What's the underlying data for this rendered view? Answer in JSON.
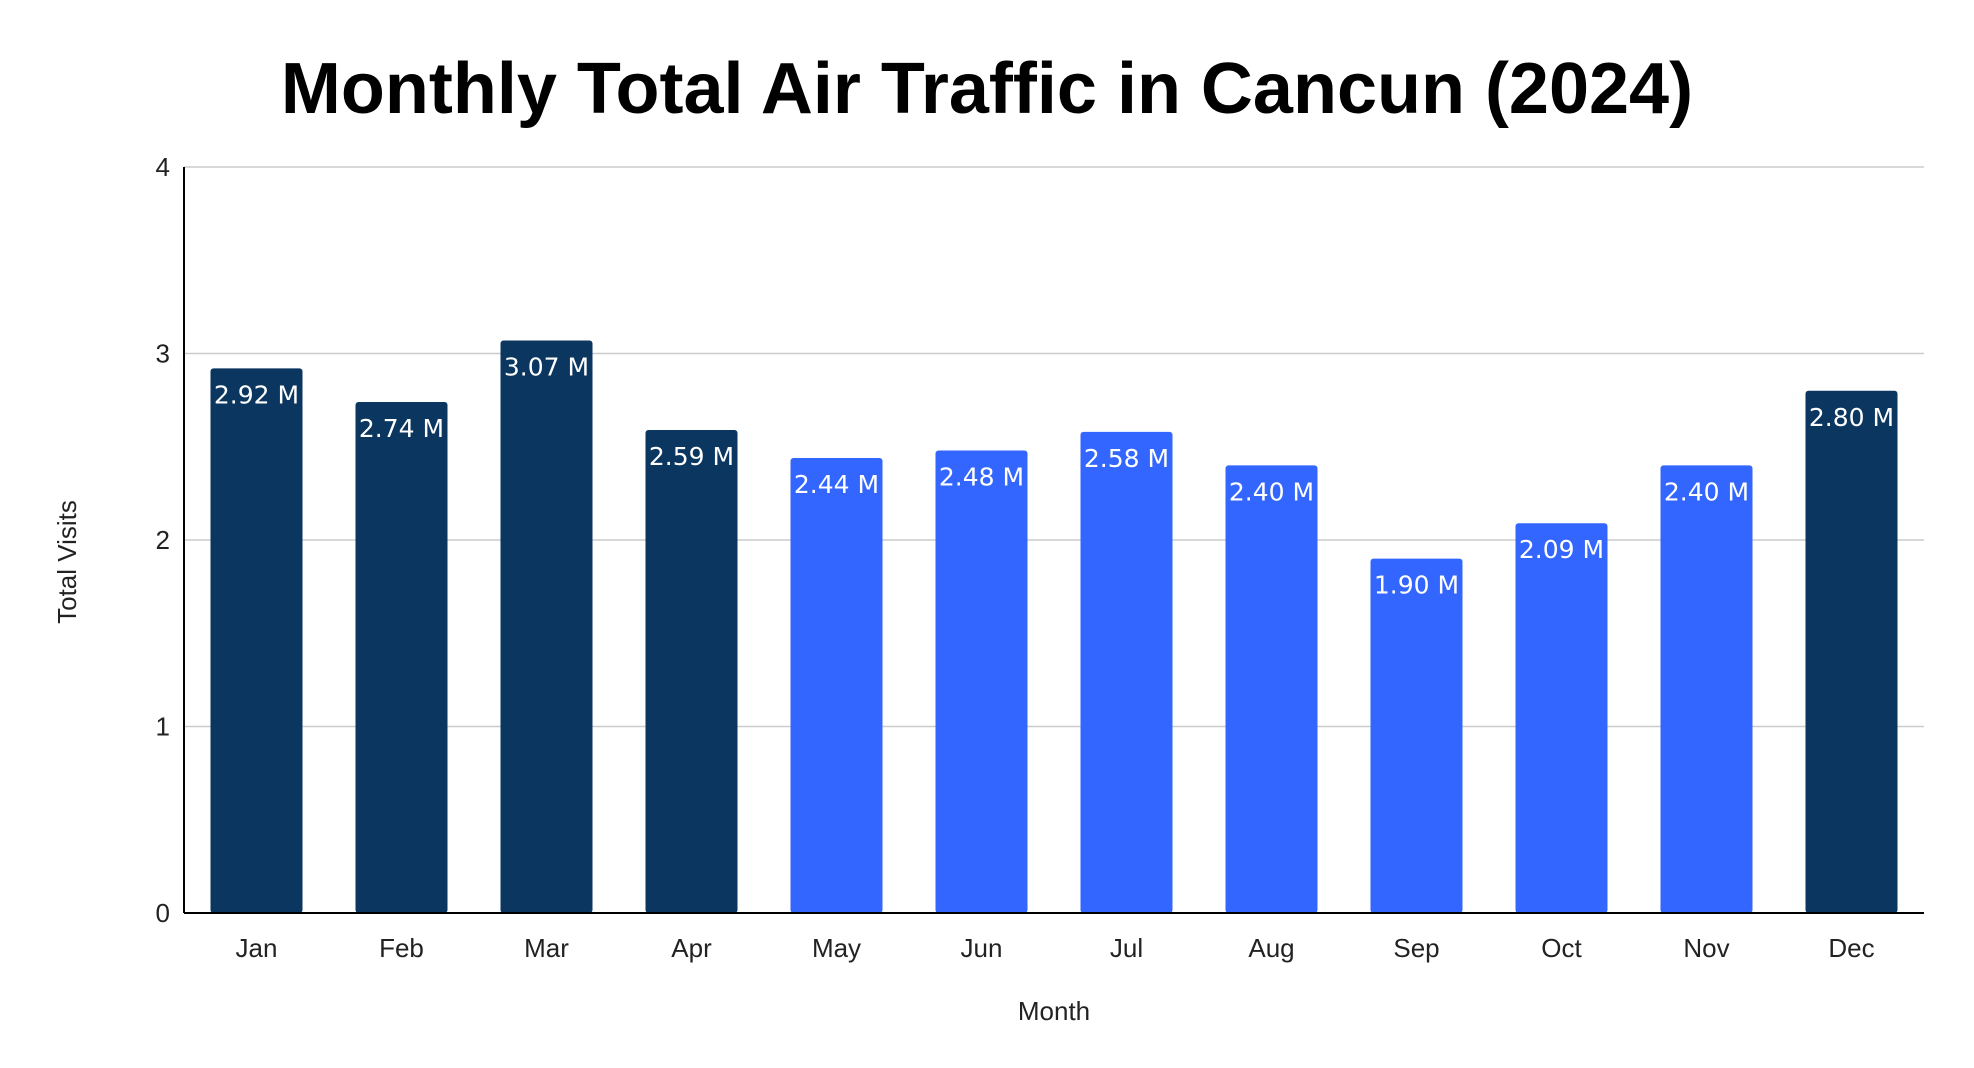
{
  "chart_data": {
    "type": "bar",
    "title": "Monthly Total Air Traffic in Cancun (2024)",
    "xlabel": "Month",
    "ylabel": "Total Visits",
    "categories": [
      "Jan",
      "Feb",
      "Mar",
      "Apr",
      "May",
      "Jun",
      "Jul",
      "Aug",
      "Sep",
      "Oct",
      "Nov",
      "Dec"
    ],
    "values": [
      2.92,
      2.74,
      3.07,
      2.59,
      2.44,
      2.48,
      2.58,
      2.4,
      1.9,
      2.09,
      2.4,
      2.8
    ],
    "data_labels": [
      "2.92 M",
      "2.74 M",
      "3.07 M",
      "2.59 M",
      "2.44 M",
      "2.48 M",
      "2.58 M",
      "2.40 M",
      "1.90 M",
      "2.09 M",
      "2.40 M",
      "2.80 M"
    ],
    "bar_colors": [
      "#0b3660",
      "#0b3660",
      "#0b3660",
      "#0b3660",
      "#3366ff",
      "#3366ff",
      "#3366ff",
      "#3366ff",
      "#3366ff",
      "#3366ff",
      "#3366ff",
      "#0b3660"
    ],
    "yticks": [
      0,
      1,
      2,
      3,
      4
    ],
    "ylim": [
      0,
      4
    ],
    "grid": true,
    "legend": "none"
  }
}
